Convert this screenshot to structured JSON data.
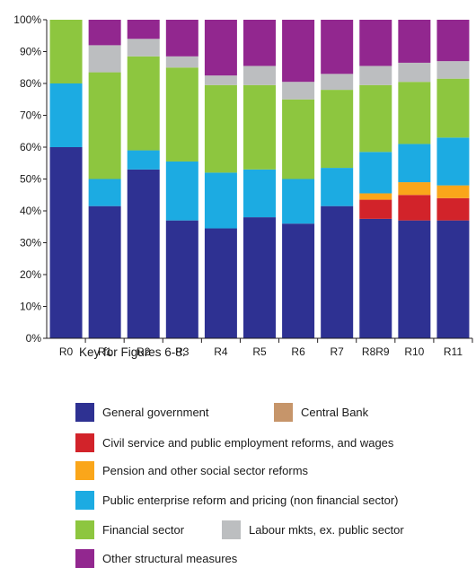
{
  "chart_data": {
    "type": "bar",
    "stacked": true,
    "percent": true,
    "categories": [
      "R0",
      "R1",
      "R2",
      "R3",
      "R4",
      "R5",
      "R6",
      "R7",
      "R8R9",
      "R10",
      "R11"
    ],
    "y_ticks": [
      "0%",
      "10%",
      "20%",
      "30%",
      "40%",
      "50%",
      "60%",
      "70%",
      "80%",
      "90%",
      "100%"
    ],
    "ylim": [
      0,
      100
    ],
    "grid": false,
    "series": [
      {
        "name": "General government",
        "color": "#2e3192",
        "values": [
          60,
          41.5,
          53,
          37,
          34.5,
          38,
          36,
          41.5,
          37.5,
          37,
          37
        ]
      },
      {
        "name": "Central Bank",
        "color": "#c6956a",
        "values": [
          0,
          0,
          0,
          0,
          0,
          0,
          0,
          0,
          0,
          0,
          0
        ]
      },
      {
        "name": "Civil service and public employment reforms, and wages",
        "color": "#d2232a",
        "values": [
          0,
          0,
          0,
          0,
          0,
          0,
          0,
          0,
          6,
          8,
          7
        ]
      },
      {
        "name": "Pension and other social sector reforms",
        "color": "#faa61a",
        "values": [
          0,
          0,
          0,
          0,
          0,
          0,
          0,
          0,
          2,
          4,
          4
        ]
      },
      {
        "name": "Public enterprise reform and pricing (non financial sector)",
        "color": "#1cabe2",
        "values": [
          20,
          8.5,
          6,
          18.5,
          17.5,
          15,
          14,
          12,
          13,
          12,
          15
        ]
      },
      {
        "name": "Financial sector",
        "color": "#8dc63f",
        "values": [
          20,
          33.5,
          29.5,
          29.5,
          27.5,
          26.5,
          25,
          24.5,
          21,
          19.5,
          18.5
        ]
      },
      {
        "name": "Labour mkts, ex. public sector",
        "color": "#bcbec0",
        "values": [
          0,
          8.5,
          5.5,
          3.5,
          3,
          6,
          5.5,
          5,
          6,
          6,
          5.5
        ]
      },
      {
        "name": "Other structural measures",
        "color": "#92278f",
        "values": [
          0,
          8,
          6,
          11.5,
          17.5,
          14.5,
          19.5,
          17,
          14.5,
          13.5,
          13
        ]
      }
    ]
  },
  "key": {
    "title": "Key for Figures 6-8:",
    "items": [
      {
        "label": "General government",
        "color": "#2e3192"
      },
      {
        "label": "Central Bank",
        "color": "#c6956a"
      },
      {
        "label": "Civil service and public employment reforms, and wages",
        "color": "#d2232a"
      },
      {
        "label": "Pension and other social sector reforms",
        "color": "#faa61a"
      },
      {
        "label": "Public enterprise reform and pricing (non financial sector)",
        "color": "#1cabe2"
      },
      {
        "label": "Financial sector",
        "color": "#8dc63f"
      },
      {
        "label": "Labour mkts, ex. public sector",
        "color": "#bcbec0"
      },
      {
        "label": "Other structural measures",
        "color": "#92278f"
      }
    ]
  }
}
